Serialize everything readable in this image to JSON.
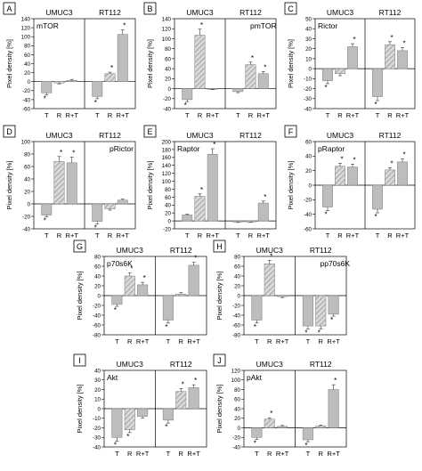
{
  "figure": {
    "group_labels": [
      "UMUC3",
      "RT112"
    ],
    "ylabel": "Pixel density [%]",
    "categories": [
      "T",
      "R",
      "R+T"
    ],
    "colors": {
      "bar": "#bdbdbd",
      "bar_stroke": "#7a7a7a",
      "hatch": "#8c8c8c",
      "axis": "#000000"
    }
  },
  "chart_data": [
    {
      "panel": "A",
      "type": "bar",
      "title": "mTOR",
      "ylim": [
        -60,
        140
      ],
      "yticks": [
        -60,
        -40,
        -20,
        0,
        20,
        40,
        60,
        80,
        100,
        120,
        140
      ],
      "categories": [
        "T",
        "R",
        "R+T"
      ],
      "series": [
        {
          "group": "UMUC3",
          "values": [
            -25,
            -3,
            3
          ],
          "errors": [
            4,
            2,
            2
          ],
          "significant": [
            true,
            false,
            false
          ]
        },
        {
          "group": "RT112",
          "values": [
            -33,
            18,
            105
          ],
          "errors": [
            5,
            3,
            10
          ],
          "significant": [
            true,
            true,
            true
          ]
        }
      ]
    },
    {
      "panel": "B",
      "type": "bar",
      "title": "pmTOR",
      "ylim": [
        -40,
        140
      ],
      "yticks": [
        -40,
        -20,
        0,
        20,
        40,
        60,
        80,
        100,
        120,
        140
      ],
      "categories": [
        "T",
        "R",
        "R+T"
      ],
      "series": [
        {
          "group": "UMUC3",
          "values": [
            -22,
            107,
            -1
          ],
          "errors": [
            4,
            12,
            1
          ],
          "significant": [
            true,
            true,
            false
          ]
        },
        {
          "group": "RT112",
          "values": [
            -6,
            48,
            30
          ],
          "errors": [
            2,
            5,
            4
          ],
          "significant": [
            false,
            true,
            true
          ]
        }
      ]
    },
    {
      "panel": "C",
      "type": "bar",
      "title": "Rictor",
      "ylim": [
        -40,
        50
      ],
      "yticks": [
        -40,
        -30,
        -20,
        -10,
        0,
        10,
        20,
        30,
        40,
        50
      ],
      "categories": [
        "T",
        "R",
        "R+T"
      ],
      "series": [
        {
          "group": "UMUC3",
          "values": [
            -12,
            -5,
            22
          ],
          "errors": [
            3,
            2,
            3
          ],
          "significant": [
            true,
            false,
            true
          ]
        },
        {
          "group": "RT112",
          "values": [
            -28,
            24,
            18
          ],
          "errors": [
            4,
            3,
            3
          ],
          "significant": [
            true,
            true,
            true
          ]
        }
      ]
    },
    {
      "panel": "D",
      "type": "bar",
      "title": "pRictor",
      "ylim": [
        -40,
        100
      ],
      "yticks": [
        -40,
        -20,
        0,
        20,
        40,
        60,
        80,
        100
      ],
      "categories": [
        "T",
        "R",
        "R+T"
      ],
      "series": [
        {
          "group": "UMUC3",
          "values": [
            -18,
            68,
            66
          ],
          "errors": [
            3,
            8,
            9
          ],
          "significant": [
            true,
            true,
            true
          ]
        },
        {
          "group": "RT112",
          "values": [
            -28,
            -8,
            6
          ],
          "errors": [
            4,
            2,
            2
          ],
          "significant": [
            true,
            false,
            false
          ]
        }
      ]
    },
    {
      "panel": "E",
      "type": "bar",
      "title": "Raptor",
      "ylim": [
        -20,
        200
      ],
      "yticks": [
        -20,
        0,
        20,
        40,
        60,
        80,
        100,
        120,
        140,
        160,
        180,
        200
      ],
      "categories": [
        "T",
        "R",
        "R+T"
      ],
      "series": [
        {
          "group": "UMUC3",
          "values": [
            15,
            62,
            168
          ],
          "errors": [
            2,
            6,
            14
          ],
          "significant": [
            false,
            true,
            true
          ]
        },
        {
          "group": "RT112",
          "values": [
            -3,
            -3,
            45
          ],
          "errors": [
            1,
            1,
            5
          ],
          "significant": [
            false,
            false,
            true
          ]
        }
      ]
    },
    {
      "panel": "F",
      "type": "bar",
      "title": "pRaptor",
      "ylim": [
        -60,
        60
      ],
      "yticks": [
        -60,
        -40,
        -20,
        0,
        20,
        40,
        60
      ],
      "categories": [
        "T",
        "R",
        "R+T"
      ],
      "series": [
        {
          "group": "UMUC3",
          "values": [
            -30,
            26,
            25
          ],
          "errors": [
            5,
            4,
            4
          ],
          "significant": [
            true,
            true,
            true
          ]
        },
        {
          "group": "RT112",
          "values": [
            -33,
            21,
            32
          ],
          "errors": [
            5,
            3,
            4
          ],
          "significant": [
            true,
            true,
            true
          ]
        }
      ]
    },
    {
      "panel": "G",
      "type": "bar",
      "title": "p70s6K",
      "ylim": [
        -80,
        80
      ],
      "yticks": [
        -80,
        -60,
        -40,
        -20,
        0,
        20,
        40,
        60,
        80
      ],
      "categories": [
        "T",
        "R",
        "R+T"
      ],
      "series": [
        {
          "group": "UMUC3",
          "values": [
            -18,
            40,
            22
          ],
          "errors": [
            4,
            6,
            5
          ],
          "significant": [
            true,
            true,
            true
          ]
        },
        {
          "group": "RT112",
          "values": [
            -50,
            3,
            62
          ],
          "errors": [
            6,
            3,
            6
          ],
          "significant": [
            true,
            false,
            true
          ]
        }
      ]
    },
    {
      "panel": "H",
      "type": "bar",
      "title": "pp70s6K",
      "ylim": [
        -80,
        80
      ],
      "yticks": [
        -80,
        -60,
        -40,
        -20,
        0,
        20,
        40,
        60,
        80
      ],
      "categories": [
        "T",
        "R",
        "R+T"
      ],
      "series": [
        {
          "group": "UMUC3",
          "values": [
            -50,
            65,
            -2
          ],
          "errors": [
            6,
            7,
            2
          ],
          "significant": [
            true,
            true,
            false
          ]
        },
        {
          "group": "RT112",
          "values": [
            -62,
            -62,
            -38
          ],
          "errors": [
            6,
            6,
            4
          ],
          "significant": [
            true,
            true,
            true
          ]
        }
      ]
    },
    {
      "panel": "I",
      "type": "bar",
      "title": "Akt",
      "ylim": [
        -40,
        40
      ],
      "yticks": [
        -40,
        -30,
        -20,
        -10,
        0,
        10,
        20,
        30,
        40
      ],
      "categories": [
        "T",
        "R",
        "R+T"
      ],
      "series": [
        {
          "group": "UMUC3",
          "values": [
            -30,
            -22,
            -8
          ],
          "errors": [
            4,
            3,
            2
          ],
          "significant": [
            true,
            true,
            false
          ]
        },
        {
          "group": "RT112",
          "values": [
            -12,
            18,
            22
          ],
          "errors": [
            3,
            3,
            3
          ],
          "significant": [
            true,
            true,
            true
          ]
        }
      ]
    },
    {
      "panel": "J",
      "type": "bar",
      "title": "pAkt",
      "ylim": [
        -40,
        120
      ],
      "yticks": [
        -40,
        -20,
        0,
        20,
        40,
        60,
        80,
        100,
        120
      ],
      "categories": [
        "T",
        "R",
        "R+T"
      ],
      "series": [
        {
          "group": "UMUC3",
          "values": [
            -20,
            18,
            3
          ],
          "errors": [
            4,
            3,
            2
          ],
          "significant": [
            true,
            true,
            false
          ]
        },
        {
          "group": "RT112",
          "values": [
            -25,
            4,
            80
          ],
          "errors": [
            4,
            2,
            10
          ],
          "significant": [
            true,
            false,
            true
          ]
        }
      ]
    }
  ]
}
